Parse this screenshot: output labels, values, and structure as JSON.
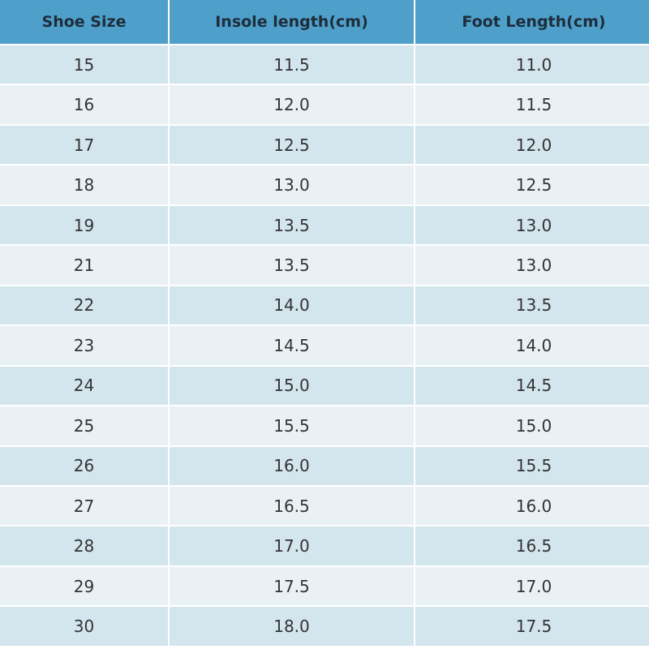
{
  "table": {
    "header": [
      "Shoe Size",
      "Insole length(cm)",
      "Foot Length(cm)"
    ],
    "rows": [
      [
        "15",
        "11.5",
        "11.0"
      ],
      [
        "16",
        "12.0",
        "11.5"
      ],
      [
        "17",
        "12.5",
        "12.0"
      ],
      [
        "18",
        "13.0",
        "12.5"
      ],
      [
        "19",
        "13.5",
        "13.0"
      ],
      [
        "21",
        "13.5",
        "13.0"
      ],
      [
        "22",
        "14.0",
        "13.5"
      ],
      [
        "23",
        "14.5",
        "14.0"
      ],
      [
        "24",
        "15.0",
        "14.5"
      ],
      [
        "25",
        "15.5",
        "15.0"
      ],
      [
        "26",
        "16.0",
        "15.5"
      ],
      [
        "27",
        "16.5",
        "16.0"
      ],
      [
        "28",
        "17.0",
        "16.5"
      ],
      [
        "29",
        "17.5",
        "17.0"
      ],
      [
        "30",
        "18.0",
        "17.5"
      ]
    ]
  }
}
